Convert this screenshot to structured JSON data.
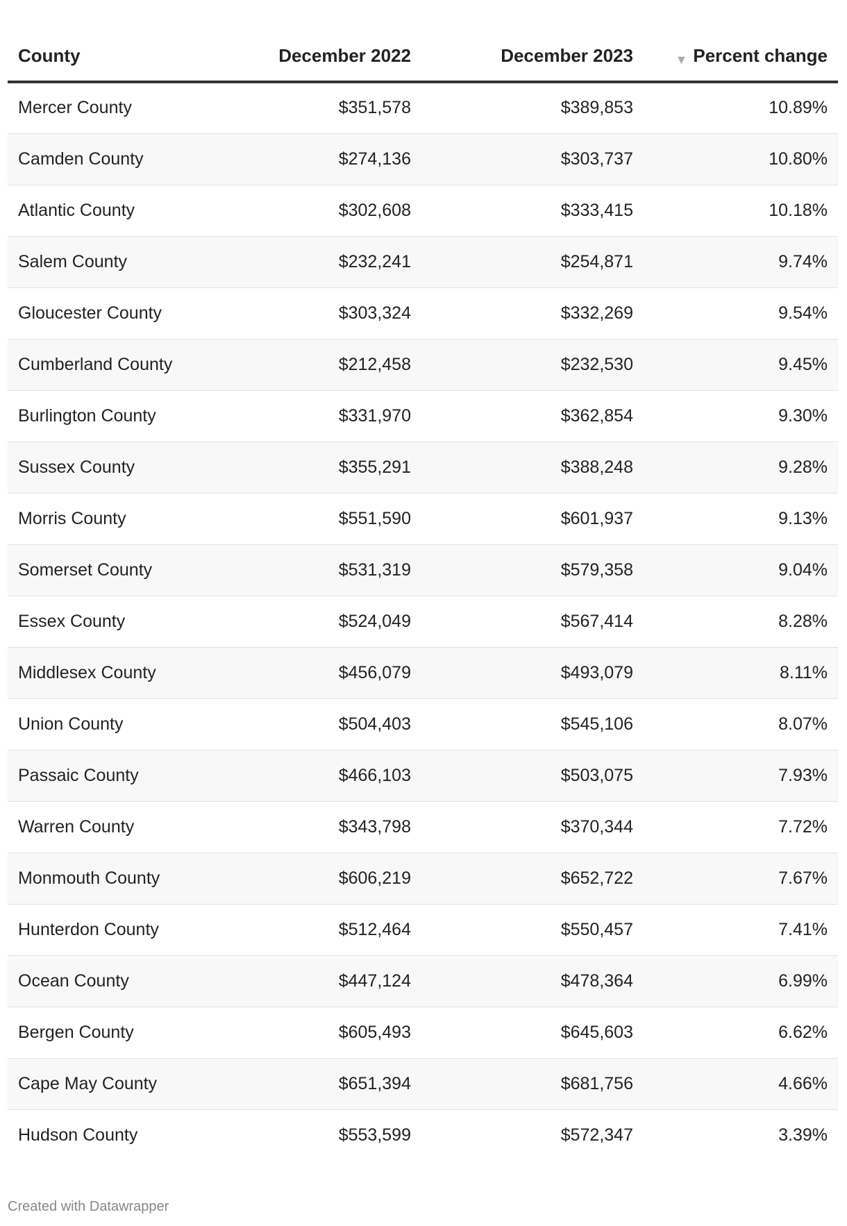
{
  "table": {
    "headers": [
      "County",
      "December 2022",
      "December 2023",
      "Percent change"
    ],
    "sort_icon": "triangle-down-icon",
    "rows": [
      [
        "Mercer County",
        "$351,578",
        "$389,853",
        "10.89%"
      ],
      [
        "Camden County",
        "$274,136",
        "$303,737",
        "10.80%"
      ],
      [
        "Atlantic County",
        "$302,608",
        "$333,415",
        "10.18%"
      ],
      [
        "Salem County",
        "$232,241",
        "$254,871",
        "9.74%"
      ],
      [
        "Gloucester County",
        "$303,324",
        "$332,269",
        "9.54%"
      ],
      [
        "Cumberland County",
        "$212,458",
        "$232,530",
        "9.45%"
      ],
      [
        "Burlington County",
        "$331,970",
        "$362,854",
        "9.30%"
      ],
      [
        "Sussex County",
        "$355,291",
        "$388,248",
        "9.28%"
      ],
      [
        "Morris County",
        "$551,590",
        "$601,937",
        "9.13%"
      ],
      [
        "Somerset County",
        "$531,319",
        "$579,358",
        "9.04%"
      ],
      [
        "Essex County",
        "$524,049",
        "$567,414",
        "8.28%"
      ],
      [
        "Middlesex County",
        "$456,079",
        "$493,079",
        "8.11%"
      ],
      [
        "Union County",
        "$504,403",
        "$545,106",
        "8.07%"
      ],
      [
        "Passaic County",
        "$466,103",
        "$503,075",
        "7.93%"
      ],
      [
        "Warren County",
        "$343,798",
        "$370,344",
        "7.72%"
      ],
      [
        "Monmouth County",
        "$606,219",
        "$652,722",
        "7.67%"
      ],
      [
        "Hunterdon County",
        "$512,464",
        "$550,457",
        "7.41%"
      ],
      [
        "Ocean County",
        "$447,124",
        "$478,364",
        "6.99%"
      ],
      [
        "Bergen County",
        "$605,493",
        "$645,603",
        "6.62%"
      ],
      [
        "Cape May County",
        "$651,394",
        "$681,756",
        "4.66%"
      ],
      [
        "Hudson County",
        "$553,599",
        "$572,347",
        "3.39%"
      ]
    ]
  },
  "footer": "Created with Datawrapper"
}
